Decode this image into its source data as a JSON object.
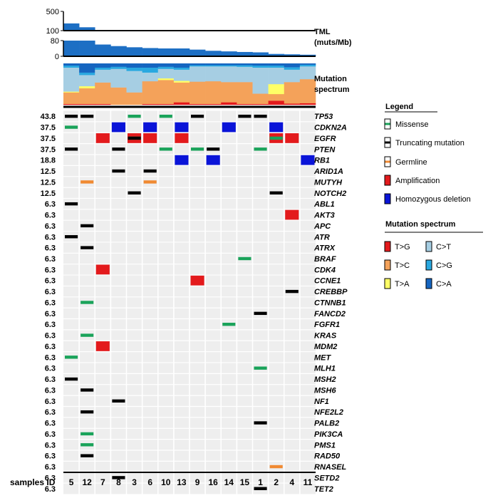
{
  "chart_data": {
    "type": "heatmap",
    "samples": [
      "5",
      "12",
      "7",
      "8",
      "3",
      "6",
      "10",
      "13",
      "9",
      "16",
      "14",
      "15",
      "1",
      "2",
      "4",
      "11"
    ],
    "samples_label": "samples ID",
    "tml": {
      "title": "TML",
      "unit": "(muts/Mb)",
      "panel_hi": {
        "ticks": [
          "500",
          "100"
        ],
        "range": [
          100,
          500
        ]
      },
      "panel_lo": {
        "ticks": [
          "80",
          "0"
        ],
        "range": [
          0,
          80
        ]
      },
      "values": [
        250,
        170,
        60,
        52,
        46,
        42,
        40,
        40,
        34,
        28,
        25,
        22,
        20,
        12,
        10,
        8
      ]
    },
    "spectrum": {
      "title": "Mutation spectrum",
      "classes": [
        "T>G",
        "T>C",
        "T>A",
        "C>T",
        "C>G",
        "C>A"
      ],
      "colors": {
        "T>G": "#e31a1c",
        "T>C": "#f4a25a",
        "T>A": "#ffff66",
        "C>T": "#a6cee3",
        "C>G": "#29a8e0",
        "C>A": "#1565c0"
      },
      "fractions": [
        [
          0.02,
          0.28,
          0.02,
          0.58,
          0.05,
          0.05
        ],
        [
          0.02,
          0.38,
          0.05,
          0.27,
          0.06,
          0.22
        ],
        [
          0.02,
          0.52,
          0.0,
          0.31,
          0.05,
          0.1
        ],
        [
          0.0,
          0.42,
          0.0,
          0.45,
          0.05,
          0.08
        ],
        [
          0.0,
          0.3,
          0.0,
          0.52,
          0.08,
          0.1
        ],
        [
          0.02,
          0.55,
          0.0,
          0.21,
          0.12,
          0.1
        ],
        [
          0.02,
          0.58,
          0.04,
          0.23,
          0.05,
          0.08
        ],
        [
          0.06,
          0.48,
          0.04,
          0.27,
          0.05,
          0.1
        ],
        [
          0.02,
          0.54,
          0.0,
          0.37,
          0.03,
          0.04
        ],
        [
          0.02,
          0.55,
          0.0,
          0.36,
          0.03,
          0.04
        ],
        [
          0.06,
          0.49,
          0.0,
          0.38,
          0.03,
          0.04
        ],
        [
          0.02,
          0.53,
          0.0,
          0.37,
          0.04,
          0.04
        ],
        [
          0.02,
          0.25,
          0.0,
          0.63,
          0.05,
          0.05
        ],
        [
          0.1,
          0.16,
          0.24,
          0.4,
          0.05,
          0.05
        ],
        [
          0.03,
          0.52,
          0.0,
          0.3,
          0.06,
          0.09
        ],
        [
          0.04,
          0.58,
          0.0,
          0.31,
          0.04,
          0.03
        ]
      ]
    },
    "genes": [
      {
        "name": "TP53",
        "pct": "43.8"
      },
      {
        "name": "CDKN2A",
        "pct": "37.5"
      },
      {
        "name": "EGFR",
        "pct": "37.5"
      },
      {
        "name": "PTEN",
        "pct": "37.5"
      },
      {
        "name": "RB1",
        "pct": "18.8"
      },
      {
        "name": "ARID1A",
        "pct": "12.5"
      },
      {
        "name": "MUTYH",
        "pct": "12.5"
      },
      {
        "name": "NOTCH2",
        "pct": "12.5"
      },
      {
        "name": "ABL1",
        "pct": "6.3"
      },
      {
        "name": "AKT3",
        "pct": "6.3"
      },
      {
        "name": "APC",
        "pct": "6.3"
      },
      {
        "name": "ATR",
        "pct": "6.3"
      },
      {
        "name": "ATRX",
        "pct": "6.3"
      },
      {
        "name": "BRAF",
        "pct": "6.3"
      },
      {
        "name": "CDK4",
        "pct": "6.3"
      },
      {
        "name": "CCNE1",
        "pct": "6.3"
      },
      {
        "name": "CREBBP",
        "pct": "6.3"
      },
      {
        "name": "CTNNB1",
        "pct": "6.3"
      },
      {
        "name": "FANCD2",
        "pct": "6.3"
      },
      {
        "name": "FGFR1",
        "pct": "6.3"
      },
      {
        "name": "KRAS",
        "pct": "6.3"
      },
      {
        "name": "MDM2",
        "pct": "6.3"
      },
      {
        "name": "MET",
        "pct": "6.3"
      },
      {
        "name": "MLH1",
        "pct": "6.3"
      },
      {
        "name": "MSH2",
        "pct": "6.3"
      },
      {
        "name": "MSH6",
        "pct": "6.3"
      },
      {
        "name": "NF1",
        "pct": "6.3"
      },
      {
        "name": "NFE2L2",
        "pct": "6.3"
      },
      {
        "name": "PALB2",
        "pct": "6.3"
      },
      {
        "name": "PIK3CA",
        "pct": "6.3"
      },
      {
        "name": "PMS1",
        "pct": "6.3"
      },
      {
        "name": "RAD50",
        "pct": "6.3"
      },
      {
        "name": "RNASEL",
        "pct": "6.3"
      },
      {
        "name": "SETD2",
        "pct": "6.3"
      },
      {
        "name": "TET2",
        "pct": "6.3"
      }
    ],
    "alterations": [
      {
        "gene": "TP53",
        "sample": "5",
        "type": "truncating"
      },
      {
        "gene": "TP53",
        "sample": "12",
        "type": "truncating"
      },
      {
        "gene": "TP53",
        "sample": "3",
        "type": "missense"
      },
      {
        "gene": "TP53",
        "sample": "10",
        "type": "missense"
      },
      {
        "gene": "TP53",
        "sample": "9",
        "type": "truncating"
      },
      {
        "gene": "TP53",
        "sample": "15",
        "type": "truncating"
      },
      {
        "gene": "TP53",
        "sample": "1",
        "type": "truncating"
      },
      {
        "gene": "CDKN2A",
        "sample": "5",
        "type": "missense"
      },
      {
        "gene": "CDKN2A",
        "sample": "8",
        "type": "deletion"
      },
      {
        "gene": "CDKN2A",
        "sample": "6",
        "type": "deletion"
      },
      {
        "gene": "CDKN2A",
        "sample": "13",
        "type": "deletion"
      },
      {
        "gene": "CDKN2A",
        "sample": "14",
        "type": "deletion"
      },
      {
        "gene": "CDKN2A",
        "sample": "2",
        "type": "deletion"
      },
      {
        "gene": "EGFR",
        "sample": "7",
        "type": "amplification"
      },
      {
        "gene": "EGFR",
        "sample": "3",
        "type": "amplification"
      },
      {
        "gene": "EGFR",
        "sample": "3",
        "type": "missense"
      },
      {
        "gene": "EGFR",
        "sample": "3",
        "type": "truncating"
      },
      {
        "gene": "EGFR",
        "sample": "6",
        "type": "amplification"
      },
      {
        "gene": "EGFR",
        "sample": "13",
        "type": "amplification"
      },
      {
        "gene": "EGFR",
        "sample": "2",
        "type": "amplification"
      },
      {
        "gene": "EGFR",
        "sample": "2",
        "type": "missense"
      },
      {
        "gene": "EGFR",
        "sample": "4",
        "type": "amplification"
      },
      {
        "gene": "PTEN",
        "sample": "5",
        "type": "truncating"
      },
      {
        "gene": "PTEN",
        "sample": "8",
        "type": "truncating"
      },
      {
        "gene": "PTEN",
        "sample": "10",
        "type": "missense"
      },
      {
        "gene": "PTEN",
        "sample": "9",
        "type": "missense"
      },
      {
        "gene": "PTEN",
        "sample": "16",
        "type": "truncating"
      },
      {
        "gene": "PTEN",
        "sample": "1",
        "type": "missense"
      },
      {
        "gene": "RB1",
        "sample": "13",
        "type": "deletion"
      },
      {
        "gene": "RB1",
        "sample": "16",
        "type": "deletion"
      },
      {
        "gene": "RB1",
        "sample": "11",
        "type": "deletion"
      },
      {
        "gene": "ARID1A",
        "sample": "8",
        "type": "truncating"
      },
      {
        "gene": "ARID1A",
        "sample": "6",
        "type": "truncating"
      },
      {
        "gene": "MUTYH",
        "sample": "12",
        "type": "germline"
      },
      {
        "gene": "MUTYH",
        "sample": "6",
        "type": "germline"
      },
      {
        "gene": "NOTCH2",
        "sample": "3",
        "type": "truncating"
      },
      {
        "gene": "NOTCH2",
        "sample": "2",
        "type": "truncating"
      },
      {
        "gene": "ABL1",
        "sample": "5",
        "type": "truncating"
      },
      {
        "gene": "AKT3",
        "sample": "4",
        "type": "amplification"
      },
      {
        "gene": "APC",
        "sample": "12",
        "type": "truncating"
      },
      {
        "gene": "ATR",
        "sample": "5",
        "type": "truncating"
      },
      {
        "gene": "ATRX",
        "sample": "12",
        "type": "truncating"
      },
      {
        "gene": "BRAF",
        "sample": "15",
        "type": "missense"
      },
      {
        "gene": "CDK4",
        "sample": "7",
        "type": "amplification"
      },
      {
        "gene": "CCNE1",
        "sample": "9",
        "type": "amplification"
      },
      {
        "gene": "CREBBP",
        "sample": "4",
        "type": "truncating"
      },
      {
        "gene": "CTNNB1",
        "sample": "12",
        "type": "missense"
      },
      {
        "gene": "FANCD2",
        "sample": "1",
        "type": "truncating"
      },
      {
        "gene": "FGFR1",
        "sample": "14",
        "type": "missense"
      },
      {
        "gene": "KRAS",
        "sample": "12",
        "type": "missense"
      },
      {
        "gene": "MDM2",
        "sample": "7",
        "type": "amplification"
      },
      {
        "gene": "MET",
        "sample": "5",
        "type": "missense"
      },
      {
        "gene": "MLH1",
        "sample": "1",
        "type": "missense"
      },
      {
        "gene": "MSH2",
        "sample": "5",
        "type": "truncating"
      },
      {
        "gene": "MSH6",
        "sample": "12",
        "type": "truncating"
      },
      {
        "gene": "NF1",
        "sample": "8",
        "type": "truncating"
      },
      {
        "gene": "NFE2L2",
        "sample": "12",
        "type": "truncating"
      },
      {
        "gene": "PALB2",
        "sample": "1",
        "type": "truncating"
      },
      {
        "gene": "PIK3CA",
        "sample": "12",
        "type": "missense"
      },
      {
        "gene": "PMS1",
        "sample": "12",
        "type": "missense"
      },
      {
        "gene": "RAD50",
        "sample": "12",
        "type": "truncating"
      },
      {
        "gene": "RNASEL",
        "sample": "2",
        "type": "germline"
      },
      {
        "gene": "SETD2",
        "sample": "8",
        "type": "truncating"
      },
      {
        "gene": "TET2",
        "sample": "1",
        "type": "truncating"
      }
    ],
    "legend": {
      "title": "Legend",
      "items": [
        {
          "key": "missense",
          "label": "Missense",
          "color": "#1aa35a"
        },
        {
          "key": "truncating",
          "label": "Truncating mutation",
          "color": "#000000"
        },
        {
          "key": "germline",
          "label": "Germline",
          "color": "#f08a32"
        },
        {
          "key": "amplification",
          "label": "Amplification",
          "color": "#e31a1c"
        },
        {
          "key": "deletion",
          "label": "Homozygous deletion",
          "color": "#0a14d8"
        }
      ]
    },
    "spectrum_legend": {
      "title": "Mutation spectrum",
      "items": [
        {
          "label": "T>G",
          "color": "#e31a1c"
        },
        {
          "label": "C>T",
          "color": "#a6cee3"
        },
        {
          "label": "T>C",
          "color": "#f4a25a"
        },
        {
          "label": "C>G",
          "color": "#29a8e0"
        },
        {
          "label": "T>A",
          "color": "#ffff66"
        },
        {
          "label": "C>A",
          "color": "#1565c0"
        }
      ]
    }
  }
}
